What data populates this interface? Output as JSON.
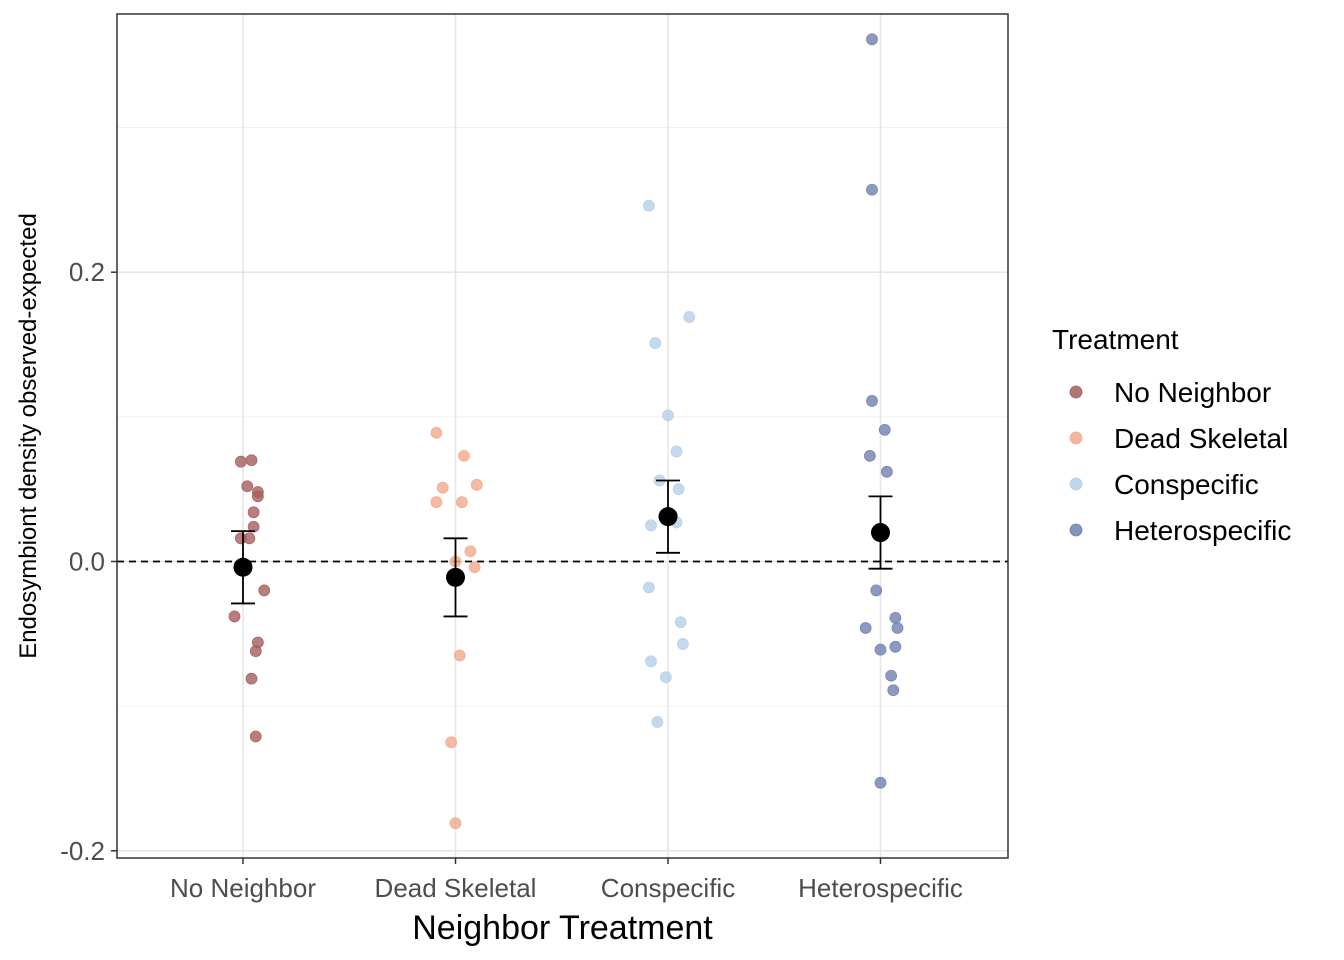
{
  "chart_data": {
    "type": "scatter",
    "title": "",
    "xlabel": "Neighbor Treatment",
    "ylabel": "Endosymbiont density observed-expected",
    "categories": [
      "No Neighbor",
      "Dead Skeletal",
      "Conspecific",
      "Heterospecific"
    ],
    "ylim": [
      -0.205,
      0.3785
    ],
    "yticks": [
      -0.2,
      0.0,
      0.2
    ],
    "ytick_labels": [
      "-0.2",
      "0.0",
      "0.2"
    ],
    "minor_yticks": [
      -0.1,
      0.1,
      0.3
    ],
    "grid": true,
    "reference_line": {
      "y": 0.0,
      "style": "dashed"
    },
    "legend": {
      "title": "Treatment",
      "placement": "right"
    },
    "series": [
      {
        "name": "No Neighbor",
        "color": "#a55e5d",
        "points": [
          {
            "x": -0.01,
            "y": 0.069
          },
          {
            "x": 0.04,
            "y": 0.07
          },
          {
            "x": 0.02,
            "y": 0.052
          },
          {
            "x": 0.07,
            "y": 0.048
          },
          {
            "x": 0.07,
            "y": 0.045
          },
          {
            "x": 0.05,
            "y": 0.034
          },
          {
            "x": 0.05,
            "y": 0.024
          },
          {
            "x": -0.01,
            "y": 0.016
          },
          {
            "x": 0.03,
            "y": 0.016
          },
          {
            "x": 0.1,
            "y": -0.02
          },
          {
            "x": -0.04,
            "y": -0.038
          },
          {
            "x": 0.07,
            "y": -0.056
          },
          {
            "x": 0.06,
            "y": -0.062
          },
          {
            "x": 0.04,
            "y": -0.081
          },
          {
            "x": 0.06,
            "y": -0.121
          }
        ]
      },
      {
        "name": "Dead Skeletal",
        "color": "#f2a98b",
        "points": [
          {
            "x": -0.09,
            "y": 0.089
          },
          {
            "x": 0.04,
            "y": 0.073
          },
          {
            "x": 0.1,
            "y": 0.053
          },
          {
            "x": -0.06,
            "y": 0.051
          },
          {
            "x": -0.09,
            "y": 0.041
          },
          {
            "x": 0.03,
            "y": 0.041
          },
          {
            "x": 0.07,
            "y": 0.007
          },
          {
            "x": 0.0,
            "y": 0.0
          },
          {
            "x": 0.09,
            "y": -0.004
          },
          {
            "x": 0.02,
            "y": -0.065
          },
          {
            "x": -0.02,
            "y": -0.125
          },
          {
            "x": 0.0,
            "y": -0.181
          }
        ]
      },
      {
        "name": "Conspecific",
        "color": "#b5cfe8",
        "points": [
          {
            "x": -0.09,
            "y": 0.246
          },
          {
            "x": 0.1,
            "y": 0.169
          },
          {
            "x": -0.06,
            "y": 0.151
          },
          {
            "x": 0.0,
            "y": 0.101
          },
          {
            "x": 0.04,
            "y": 0.076
          },
          {
            "x": -0.04,
            "y": 0.056
          },
          {
            "x": 0.05,
            "y": 0.05
          },
          {
            "x": 0.02,
            "y": 0.032
          },
          {
            "x": 0.04,
            "y": 0.027
          },
          {
            "x": -0.08,
            "y": 0.025
          },
          {
            "x": -0.09,
            "y": -0.018
          },
          {
            "x": 0.06,
            "y": -0.042
          },
          {
            "x": 0.07,
            "y": -0.057
          },
          {
            "x": -0.08,
            "y": -0.069
          },
          {
            "x": -0.01,
            "y": -0.08
          },
          {
            "x": -0.05,
            "y": -0.111
          }
        ]
      },
      {
        "name": "Heterospecific",
        "color": "#6f81b0",
        "points": [
          {
            "x": -0.04,
            "y": 0.361
          },
          {
            "x": -0.04,
            "y": 0.257
          },
          {
            "x": -0.04,
            "y": 0.111
          },
          {
            "x": 0.02,
            "y": 0.091
          },
          {
            "x": -0.05,
            "y": 0.073
          },
          {
            "x": 0.03,
            "y": 0.062
          },
          {
            "x": -0.02,
            "y": -0.02
          },
          {
            "x": 0.07,
            "y": -0.039
          },
          {
            "x": -0.07,
            "y": -0.046
          },
          {
            "x": 0.08,
            "y": -0.046
          },
          {
            "x": 0.0,
            "y": -0.061
          },
          {
            "x": 0.07,
            "y": -0.059
          },
          {
            "x": 0.05,
            "y": -0.079
          },
          {
            "x": 0.06,
            "y": -0.089
          },
          {
            "x": 0.0,
            "y": -0.153
          }
        ]
      }
    ],
    "summary": [
      {
        "category": "No Neighbor",
        "mean": -0.004,
        "lower": -0.029,
        "upper": 0.021
      },
      {
        "category": "Dead Skeletal",
        "mean": -0.011,
        "lower": -0.038,
        "upper": 0.016
      },
      {
        "category": "Conspecific",
        "mean": 0.031,
        "lower": 0.006,
        "upper": 0.056
      },
      {
        "category": "Heterospecific",
        "mean": 0.02,
        "lower": -0.005,
        "upper": 0.045
      }
    ]
  }
}
